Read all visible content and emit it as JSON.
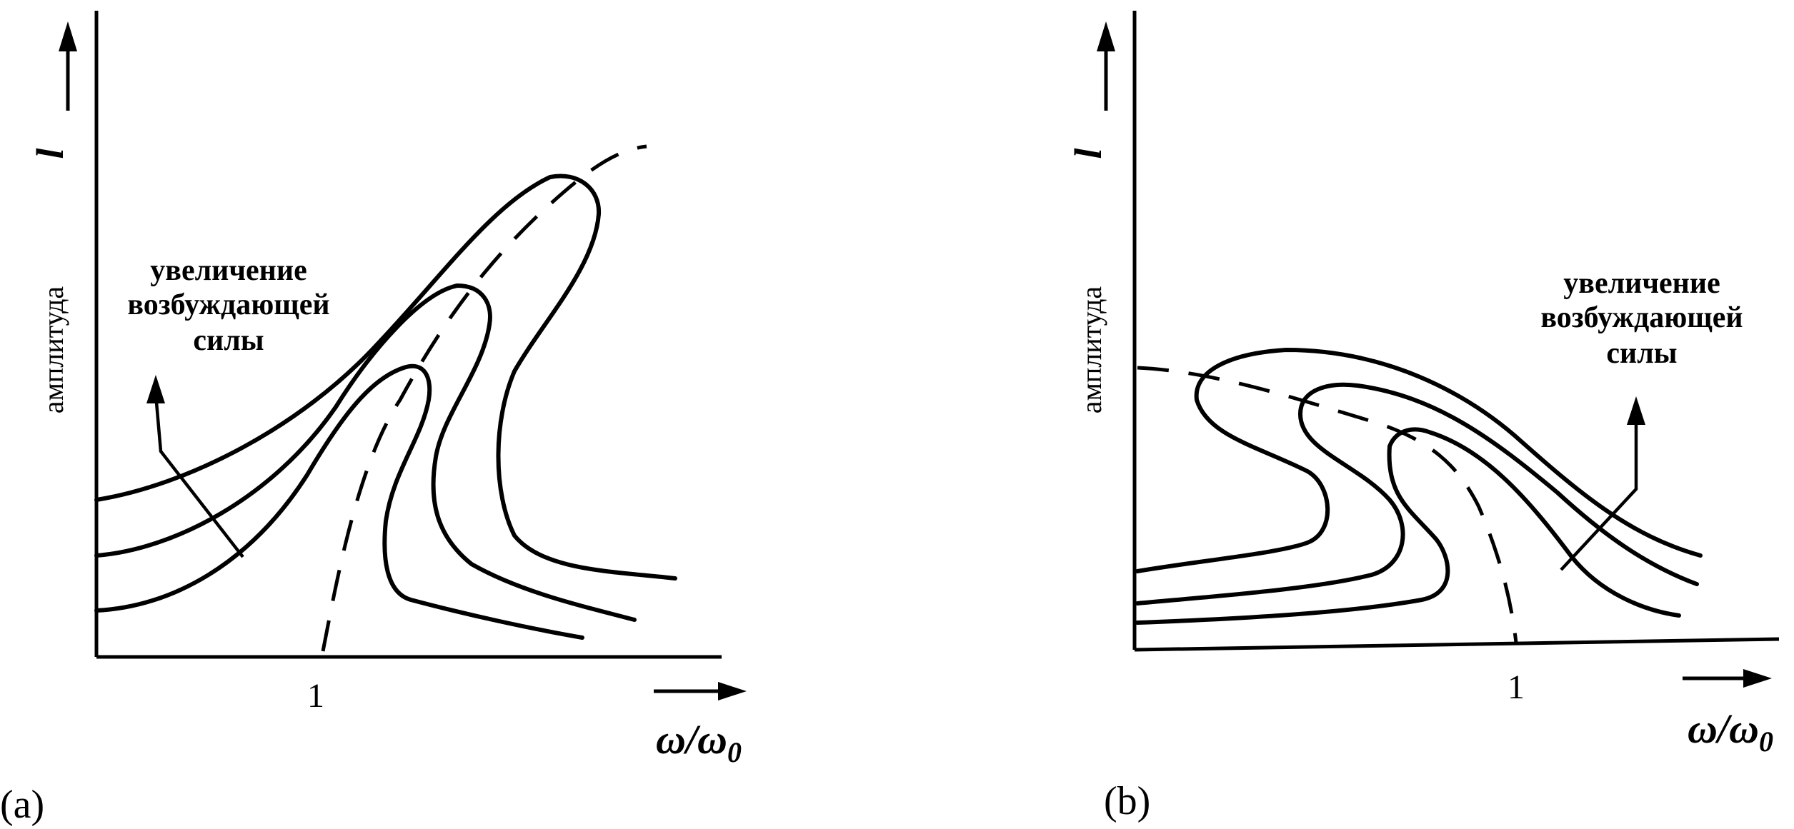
{
  "panels": [
    {
      "id": "a",
      "panel_label": "(a)",
      "y_axis_label": "амплитуда",
      "y_axis_symbol": "l",
      "x_axis_label": "ω/ω",
      "x_axis_subscript": "0",
      "x_tick": "1",
      "annotation_lines": [
        "увеличение",
        "возбуждающей",
        "силы"
      ]
    },
    {
      "id": "b",
      "panel_label": "(b)",
      "y_axis_label": "амплитуда",
      "y_axis_symbol": "l",
      "x_axis_label": "ω/ω",
      "x_axis_subscript": "0",
      "x_tick": "1",
      "annotation_lines": [
        "увеличение",
        "возбуждающей",
        "силы"
      ]
    }
  ]
}
